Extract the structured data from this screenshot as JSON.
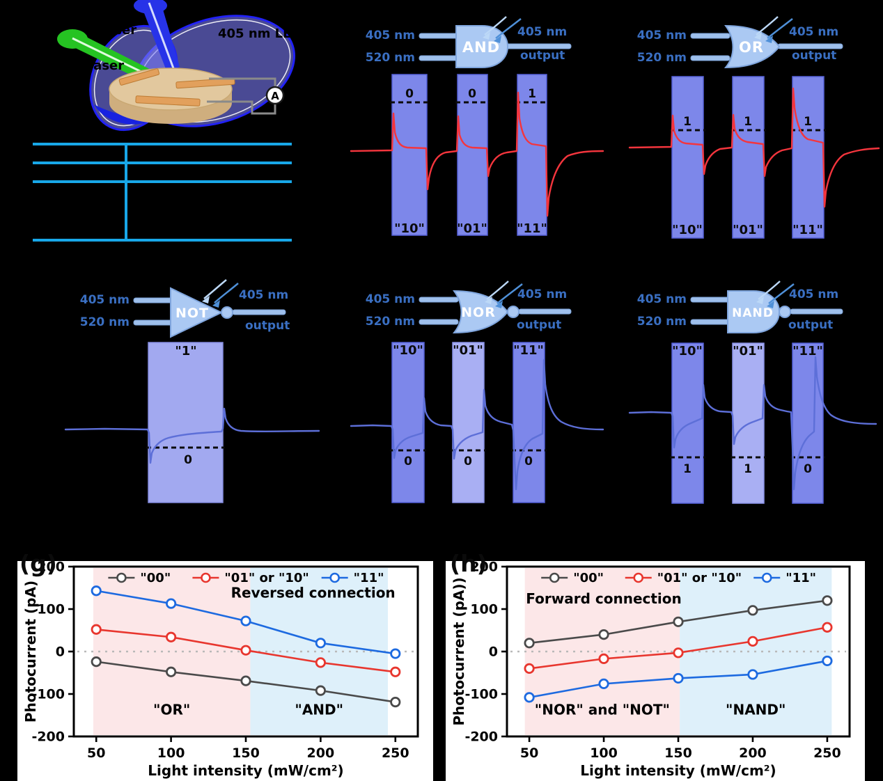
{
  "schematic": {
    "laser_label_top": "laser",
    "laser_label_left": "laser",
    "led_label": "405 nm LED",
    "ammeter_label": "A"
  },
  "gates": {
    "and": {
      "name": "AND",
      "input1": "405 nm",
      "input2": "520 nm",
      "led": "405 nm",
      "output": "output",
      "top_bits": [
        "0",
        "0",
        "1"
      ],
      "bottom_bits": [
        "\"10\"",
        "\"01\"",
        "\"11\""
      ]
    },
    "or": {
      "name": "OR",
      "input1": "405 nm",
      "input2": "520 nm",
      "led": "405 nm",
      "output": "output",
      "top_bits": [
        "1",
        "1",
        "1"
      ],
      "bottom_bits": [
        "\"10\"",
        "\"01\"",
        "\"11\""
      ]
    },
    "not": {
      "name": "NOT",
      "input1": "405 nm",
      "input2": "520 nm",
      "led": "405 nm",
      "output": "output",
      "top_bits": [
        "\"1\""
      ],
      "bottom_bits": [
        "0"
      ]
    },
    "nor": {
      "name": "NOR",
      "input1": "405 nm",
      "input2": "520 nm",
      "led": "405 nm",
      "output": "output",
      "top_bits": [
        "\"10\"",
        "\"01\"",
        "\"11\""
      ],
      "bottom_bits": [
        "0",
        "0",
        "0"
      ]
    },
    "nand": {
      "name": "NAND",
      "input1": "405 nm",
      "input2": "520 nm",
      "led": "405 nm",
      "output": "output",
      "top_bits": [
        "\"10\"",
        "\"01\"",
        "\"11\""
      ],
      "bottom_bits": [
        "1",
        "1",
        "0"
      ]
    }
  },
  "chart_data": [
    {
      "id": "chart-g",
      "panel_label": "(g)",
      "type": "line",
      "x": [
        50,
        100,
        150,
        200,
        250
      ],
      "series": [
        {
          "name": "\"00\"",
          "color": "#4a4a4a",
          "values": [
            -24,
            -48,
            -69,
            -92,
            -119
          ]
        },
        {
          "name": "\"01\" or \"10\"",
          "color": "#e8362e",
          "values": [
            52,
            34,
            3,
            -26,
            -48
          ]
        },
        {
          "name": "\"11\"",
          "color": "#1d6ae0",
          "values": [
            143,
            113,
            72,
            20,
            -5
          ]
        }
      ],
      "xlabel": "Light intensity (mW/cm²)",
      "ylabel": "Photocurrent (pA)",
      "xlim": [
        35,
        265
      ],
      "ylim": [
        -200,
        200
      ],
      "xticks": [
        50,
        100,
        150,
        200,
        250
      ],
      "yticks": [
        -200,
        -100,
        0,
        100,
        200
      ],
      "zero_line": true,
      "legend_pos": "top",
      "annotation": {
        "text": "Reversed connection",
        "x": 195,
        "y": 127
      },
      "regions": [
        {
          "x0": 48,
          "x1": 153,
          "color": "#fce7e8",
          "label": "\"OR\""
        },
        {
          "x0": 153,
          "x1": 245,
          "color": "#def0fa",
          "label": "\"AND\""
        }
      ]
    },
    {
      "id": "chart-h",
      "panel_label": "(h)",
      "type": "line",
      "x": [
        50,
        100,
        150,
        200,
        250
      ],
      "series": [
        {
          "name": "\"00\"",
          "color": "#4a4a4a",
          "values": [
            20,
            40,
            70,
            97,
            120
          ]
        },
        {
          "name": "\"01\" or \"10\"",
          "color": "#e8362e",
          "values": [
            -40,
            -17,
            -3,
            24,
            57
          ]
        },
        {
          "name": "\"11\"",
          "color": "#1d6ae0",
          "values": [
            -108,
            -76,
            -63,
            -54,
            -22
          ]
        }
      ],
      "xlabel": "Light intensity (mW/cm²)",
      "ylabel": "Photocurrent (pA))",
      "xlim": [
        35,
        265
      ],
      "ylim": [
        -200,
        200
      ],
      "xticks": [
        50,
        100,
        150,
        200,
        250
      ],
      "yticks": [
        -200,
        -100,
        0,
        100,
        200
      ],
      "zero_line": true,
      "legend_pos": "top",
      "annotation": {
        "text": "Forward connection",
        "x": 100,
        "y": 113
      },
      "regions": [
        {
          "x0": 47,
          "x1": 151,
          "color": "#fce7e8",
          "label": "\"NOR\" and \"NOT\""
        },
        {
          "x0": 151,
          "x1": 253,
          "color": "#def0fa",
          "label": "\"NAND\""
        }
      ]
    }
  ]
}
